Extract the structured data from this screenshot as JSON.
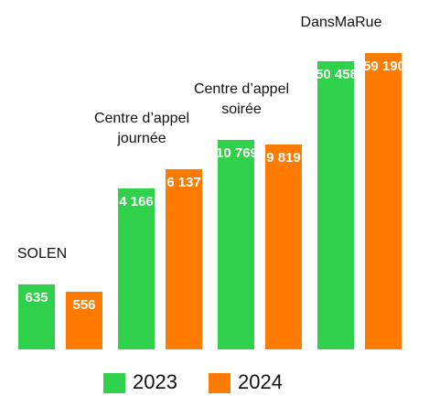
{
  "chart_data": {
    "type": "bar",
    "categories": [
      "SOLEN",
      "Centre d’appel journée",
      "Centre d’appel soirée",
      "DansMaRue"
    ],
    "series": [
      {
        "name": "2023",
        "color": "#2fd14a",
        "values": [
          635,
          4166,
          10769,
          50458
        ],
        "value_labels": [
          "635",
          "4 166",
          "10 769",
          "50 458"
        ]
      },
      {
        "name": "2024",
        "color": "#ff7b00",
        "values": [
          556,
          6137,
          9819,
          59190
        ],
        "value_labels": [
          "556",
          "6 137",
          "9 819",
          "59 190"
        ]
      }
    ],
    "ylim": [
      180,
      60000
    ],
    "log": true
  }
}
